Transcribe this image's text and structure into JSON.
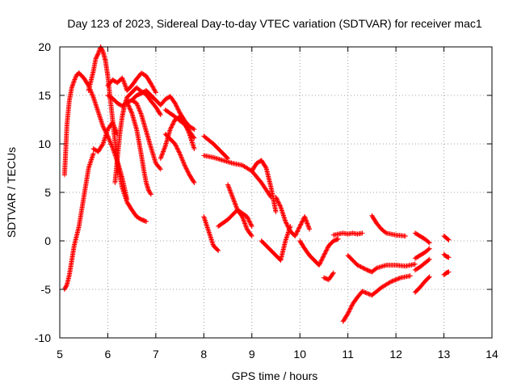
{
  "chart_data": {
    "type": "scatter",
    "title": "Day 123 of 2023, Sidereal Day-to-day VTEC variation (SDTVAR) for receiver mac1",
    "xlabel": "GPS time / hours",
    "ylabel": "SDTVAR / TECUs",
    "xlim": [
      5,
      14
    ],
    "ylim": [
      -10,
      20
    ],
    "xticks": [
      5,
      6,
      7,
      8,
      9,
      10,
      11,
      12,
      13,
      14
    ],
    "yticks": [
      -10,
      -5,
      0,
      5,
      10,
      15,
      20
    ],
    "xtick_labels": [
      "5",
      "6",
      "7",
      "8",
      "9",
      "10",
      "11",
      "12",
      "13",
      "14"
    ],
    "ytick_labels": [
      "-10",
      "-5",
      "0",
      "5",
      "10",
      "15",
      "20"
    ],
    "grid": true,
    "marker": "+",
    "color": "#ff0000",
    "series": [
      {
        "name": "arc-1",
        "x": [
          5.1,
          5.15,
          5.2,
          5.25,
          5.3,
          5.35,
          5.4
        ],
        "y": [
          6.8,
          12,
          14.5,
          15.8,
          16.5,
          17.1,
          17.3
        ]
      },
      {
        "name": "arc-2",
        "x": [
          5.4,
          5.5,
          5.6,
          5.7,
          5.8,
          5.9,
          6.0,
          6.1,
          6.2,
          6.3,
          6.4
        ],
        "y": [
          17.3,
          16.8,
          16.0,
          14.8,
          13.3,
          11.8,
          10.8,
          9.6,
          8.2,
          6.5,
          4.3
        ]
      },
      {
        "name": "arc-3",
        "x": [
          5.1,
          5.15,
          5.2,
          5.25,
          5.3,
          5.4,
          5.5,
          5.6,
          5.7
        ],
        "y": [
          -5.0,
          -4.5,
          -3.5,
          -2.0,
          -0.5,
          1.5,
          4.5,
          7.5,
          9.0
        ]
      },
      {
        "name": "arc-4",
        "x": [
          5.6,
          5.7,
          5.75,
          5.8,
          5.85,
          5.9,
          5.95,
          6.0,
          6.1,
          6.2,
          6.3,
          6.4,
          6.5,
          6.6,
          6.7,
          6.8
        ],
        "y": [
          15.5,
          17.5,
          18.8,
          19.3,
          20.0,
          19.5,
          18.6,
          17.0,
          12.5,
          8.0,
          5.5,
          4.0,
          3.2,
          2.5,
          2.2,
          2.0
        ]
      },
      {
        "name": "arc-5",
        "x": [
          5.7,
          5.8,
          5.9,
          6.0,
          6.1,
          6.2
        ],
        "y": [
          9.5,
          9.2,
          10.0,
          11.5,
          12.2,
          11.0
        ]
      },
      {
        "name": "arc-6",
        "x": [
          6.0,
          6.1,
          6.2,
          6.3,
          6.35,
          6.4,
          6.5,
          6.6,
          6.7,
          6.8,
          6.9,
          7.0
        ],
        "y": [
          16.0,
          16.6,
          16.3,
          16.8,
          16.2,
          15.5,
          16.0,
          16.7,
          17.3,
          17.0,
          16.2,
          15.3
        ]
      },
      {
        "name": "arc-7",
        "x": [
          6.15,
          6.2,
          6.25,
          6.3,
          6.35,
          6.4,
          6.5,
          6.6,
          6.7,
          6.8,
          6.9,
          7.0,
          7.1
        ],
        "y": [
          6.0,
          8.5,
          11.0,
          12.8,
          14.0,
          14.8,
          15.3,
          15.8,
          15.4,
          15.1,
          14.4,
          13.8,
          13.0
        ]
      },
      {
        "name": "arc-8",
        "x": [
          6.0,
          6.1,
          6.2,
          6.3,
          6.4,
          6.5,
          6.6,
          6.7,
          6.8,
          6.9,
          7.0,
          7.1
        ],
        "y": [
          15.0,
          14.7,
          14.2,
          13.9,
          14.3,
          14.5,
          14.2,
          13.0,
          11.3,
          9.6,
          8.0,
          7.4
        ]
      },
      {
        "name": "arc-9",
        "x": [
          6.4,
          6.5,
          6.6,
          6.65,
          6.7,
          6.75,
          6.8,
          6.85,
          6.9
        ],
        "y": [
          14.3,
          13.2,
          11.5,
          10.2,
          8.8,
          7.3,
          6.0,
          5.2,
          4.8
        ]
      },
      {
        "name": "arc-10",
        "x": [
          6.5,
          6.6,
          6.7,
          6.8,
          6.9,
          7.0,
          7.1,
          7.2,
          7.3,
          7.4,
          7.5,
          7.6,
          7.7,
          7.8
        ],
        "y": [
          14.5,
          15.0,
          15.2,
          15.5,
          15.0,
          14.5,
          14.0,
          14.6,
          14.9,
          14.2,
          13.2,
          12.4,
          11.8,
          11.5
        ]
      },
      {
        "name": "arc-11",
        "x": [
          7.1,
          7.2,
          7.3,
          7.4,
          7.5,
          7.6,
          7.7,
          7.8
        ],
        "y": [
          8.5,
          9.8,
          11.5,
          12.5,
          12.8,
          12.2,
          11.0,
          9.5
        ]
      },
      {
        "name": "arc-12",
        "x": [
          7.2,
          7.3,
          7.4,
          7.5,
          7.6,
          7.7,
          7.8
        ],
        "y": [
          11.0,
          10.5,
          10.0,
          9.0,
          7.8,
          6.8,
          6.0
        ]
      },
      {
        "name": "arc-13",
        "x": [
          7.2,
          7.4,
          7.6,
          7.8
        ],
        "y": [
          13.5,
          12.8,
          12.0,
          10.6
        ]
      },
      {
        "name": "arc-14",
        "x": [
          8.0,
          8.1,
          8.2,
          8.3,
          8.4,
          8.5
        ],
        "y": [
          10.8,
          10.4,
          10.0,
          9.5,
          9.0,
          8.5
        ]
      },
      {
        "name": "arc-15",
        "x": [
          8.0,
          8.2,
          8.4,
          8.6,
          8.8,
          9.0,
          9.2,
          9.4
        ],
        "y": [
          8.8,
          8.6,
          8.3,
          8.0,
          7.8,
          7.2,
          6.0,
          4.5
        ]
      },
      {
        "name": "arc-16",
        "x": [
          9.0,
          9.1,
          9.2,
          9.3,
          9.4,
          9.5
        ],
        "y": [
          7.2,
          8.0,
          8.3,
          7.5,
          5.5,
          3.0
        ]
      },
      {
        "name": "arc-17",
        "x": [
          8.0,
          8.1,
          8.2,
          8.3
        ],
        "y": [
          2.5,
          1.0,
          -0.5,
          -1.0
        ]
      },
      {
        "name": "arc-18",
        "x": [
          8.3,
          8.5,
          8.7,
          8.9,
          9.0
        ],
        "y": [
          1.5,
          2.2,
          3.2,
          2.5,
          1.5
        ]
      },
      {
        "name": "arc-19",
        "x": [
          8.5,
          8.6,
          8.7,
          8.8,
          8.9,
          9.0
        ],
        "y": [
          5.8,
          4.5,
          3.2,
          2.5,
          1.2,
          0.5
        ]
      },
      {
        "name": "arc-20",
        "x": [
          9.2,
          9.3,
          9.4,
          9.5,
          9.6,
          9.7,
          9.8
        ],
        "y": [
          0.0,
          -0.5,
          -1.0,
          -1.5,
          -2.0,
          0.0,
          1.5
        ]
      },
      {
        "name": "arc-21",
        "x": [
          9.5,
          9.6,
          9.7,
          9.8,
          9.9,
          10.0,
          10.1,
          10.2
        ],
        "y": [
          4.5,
          3.5,
          2.0,
          1.0,
          0.5,
          1.5,
          2.5,
          1.2
        ]
      },
      {
        "name": "arc-22",
        "x": [
          10.0,
          10.1,
          10.2,
          10.3,
          10.4,
          10.5,
          10.6,
          10.7,
          10.8
        ],
        "y": [
          0.0,
          -0.8,
          -1.5,
          -2.0,
          -2.5,
          -1.5,
          -0.5,
          0.0,
          0.2
        ]
      },
      {
        "name": "arc-23",
        "x": [
          10.5,
          10.6,
          10.7
        ],
        "y": [
          -3.8,
          -4.0,
          -3.3
        ]
      },
      {
        "name": "arc-24",
        "x": [
          10.7,
          10.8,
          10.9,
          11.0,
          11.1,
          11.2,
          11.3
        ],
        "y": [
          0.6,
          0.7,
          0.8,
          0.7,
          0.8,
          0.7,
          0.8
        ]
      },
      {
        "name": "arc-25",
        "x": [
          10.9,
          11.0,
          11.1,
          11.2,
          11.3,
          11.5,
          11.7,
          11.9,
          12.1,
          12.3
        ],
        "y": [
          -8.3,
          -7.5,
          -6.5,
          -5.8,
          -5.2,
          -5.6,
          -4.8,
          -4.2,
          -3.8,
          -3.6
        ]
      },
      {
        "name": "arc-26",
        "x": [
          11.0,
          11.2,
          11.4,
          11.5,
          11.6,
          11.8,
          12.0,
          12.2,
          12.4
        ],
        "y": [
          -1.5,
          -2.5,
          -3.0,
          -3.2,
          -2.8,
          -2.5,
          -2.5,
          -2.6,
          -2.4
        ]
      },
      {
        "name": "arc-27",
        "x": [
          11.5,
          11.6,
          11.7,
          11.8,
          12.0,
          12.2
        ],
        "y": [
          2.6,
          1.8,
          1.2,
          0.8,
          0.6,
          0.5
        ]
      },
      {
        "name": "arc-28",
        "x": [
          12.4,
          12.5,
          12.6,
          12.7
        ],
        "y": [
          -5.3,
          -4.8,
          -4.2,
          -3.7
        ]
      },
      {
        "name": "arc-29",
        "x": [
          12.4,
          12.5,
          12.6,
          12.7
        ],
        "y": [
          -3.0,
          -2.7,
          -2.3,
          -1.9
        ]
      },
      {
        "name": "arc-30",
        "x": [
          12.4,
          12.5,
          12.6,
          12.7
        ],
        "y": [
          -1.8,
          -1.5,
          -1.2,
          -0.8
        ]
      },
      {
        "name": "arc-31",
        "x": [
          12.4,
          12.5,
          12.6,
          12.7
        ],
        "y": [
          0.8,
          0.5,
          0.2,
          -0.2
        ]
      },
      {
        "name": "arc-32",
        "x": [
          13.0,
          13.05,
          13.1
        ],
        "y": [
          0.5,
          0.3,
          0.1
        ]
      },
      {
        "name": "arc-33",
        "x": [
          13.0,
          13.05,
          13.1
        ],
        "y": [
          -1.4,
          -1.6,
          -1.7
        ]
      },
      {
        "name": "arc-34",
        "x": [
          13.0,
          13.05,
          13.1
        ],
        "y": [
          -3.5,
          -3.3,
          -3.2
        ]
      }
    ]
  }
}
